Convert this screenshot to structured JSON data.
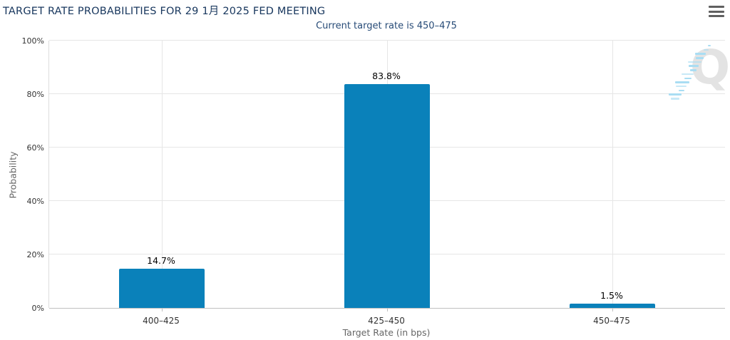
{
  "header": {
    "menu_icon": "hamburger-icon"
  },
  "watermark": {
    "letter": "Q",
    "letter_color": "#e3e3e3",
    "slash_color": "#a9ddf3"
  },
  "colors": {
    "bar": "#0a81ba",
    "title": "#17365d",
    "subtitle": "#274b77",
    "gridline": "#e6e6e6",
    "axis_line": "#c0c0c0",
    "tick_text": "#333333",
    "axis_title_text": "#666666"
  },
  "chart_data": {
    "type": "bar",
    "title": "TARGET RATE PROBABILITIES FOR 29 1月 2025 FED MEETING",
    "subtitle": "Current target rate is 450–475",
    "categories": [
      "400–425",
      "425–450",
      "450–475"
    ],
    "values": [
      14.7,
      83.8,
      1.5
    ],
    "data_labels": [
      "14.7%",
      "83.8%",
      "1.5%"
    ],
    "xlabel": "Target Rate (in bps)",
    "ylabel": "Probability",
    "ylim": [
      0,
      100
    ],
    "yticks": [
      0,
      20,
      40,
      60,
      80,
      100
    ],
    "ytick_labels": [
      "0%",
      "20%",
      "40%",
      "60%",
      "80%",
      "100%"
    ],
    "grid": true,
    "legend": false,
    "bar_color": "#0a81ba"
  }
}
